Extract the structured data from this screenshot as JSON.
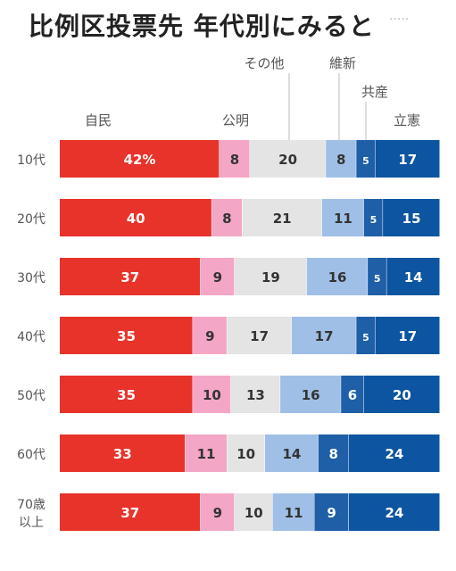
{
  "chart_data": {
    "type": "bar",
    "orientation": "horizontal",
    "stacked": true,
    "normalized": true,
    "title": "比例区投票先 年代別にみると",
    "categories": [
      "10代",
      "20代",
      "30代",
      "40代",
      "50代",
      "60代",
      "70歳以上"
    ],
    "series": [
      {
        "name": "自民",
        "color": "#e8332a",
        "values": [
          42,
          40,
          37,
          35,
          35,
          33,
          37
        ]
      },
      {
        "name": "公明",
        "color": "#f4a6c6",
        "values": [
          8,
          8,
          9,
          9,
          10,
          11,
          9
        ]
      },
      {
        "name": "その他",
        "color": "#e4e4e4",
        "values": [
          20,
          21,
          19,
          17,
          13,
          10,
          10
        ]
      },
      {
        "name": "維新",
        "color": "#9fbfe6",
        "values": [
          8,
          11,
          16,
          17,
          16,
          14,
          11
        ]
      },
      {
        "name": "共産",
        "color": "#1e5fa8",
        "values": [
          5,
          5,
          5,
          5,
          6,
          8,
          9
        ]
      },
      {
        "name": "立憲",
        "color": "#0d55a0",
        "values": [
          17,
          15,
          14,
          17,
          20,
          24,
          24
        ]
      }
    ],
    "data_labels": [
      [
        "42%",
        "8",
        "20",
        "8",
        "5",
        "17"
      ],
      [
        "40",
        "8",
        "21",
        "11",
        "5",
        "15"
      ],
      [
        "37",
        "9",
        "19",
        "16",
        "5",
        "14"
      ],
      [
        "35",
        "9",
        "17",
        "17",
        "5",
        "17"
      ],
      [
        "35",
        "10",
        "13",
        "16",
        "6",
        "20"
      ],
      [
        "33",
        "11",
        "10",
        "14",
        "8",
        "24"
      ],
      [
        "37",
        "9",
        "10",
        "11",
        "9",
        "24"
      ]
    ],
    "legend": "labels above first bar with leader lines"
  }
}
